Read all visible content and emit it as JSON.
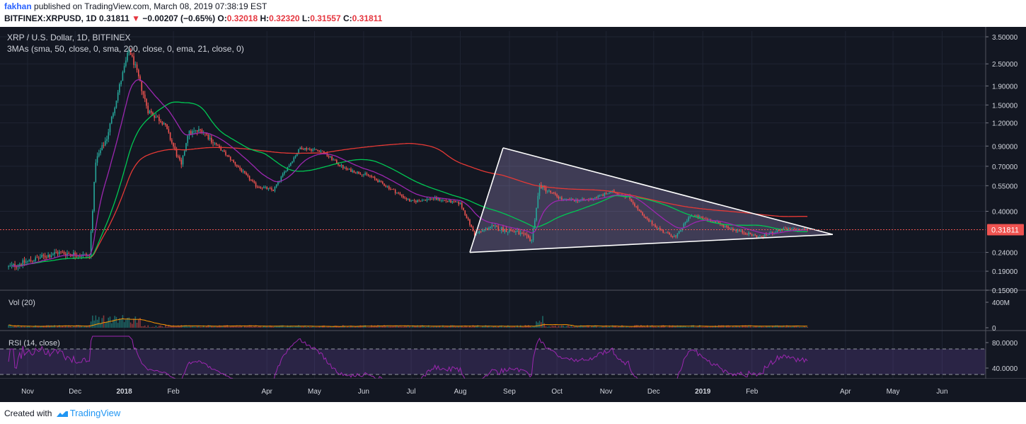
{
  "header": {
    "author": "fakhan",
    "published": "published on TradingView.com, March 08, 2019 07:38:19 EST",
    "symbol": "BITFINEX:XRPUSD, 1D",
    "last": "0.31811",
    "arrow": "▼",
    "change": "−0.00207 (−0.65%)",
    "o_label": "O:",
    "o": "0.32018",
    "h_label": "H:",
    "h": "0.32320",
    "l_label": "L:",
    "l": "0.31557",
    "c_label": "C:",
    "c": "0.31811"
  },
  "legend": {
    "title": "XRP / U.S. Dollar, 1D, BITFINEX",
    "mas": "3MAs (sma, 50, close, 0, sma, 200, close, 0, ema, 21, close, 0)",
    "vol": "Vol (20)",
    "rsi": "RSI (14, close)"
  },
  "price_badge": "0.31811",
  "footer": {
    "created": "Created with",
    "brand": "TradingView"
  },
  "colors": {
    "background": "#131722",
    "up": "#26a69a",
    "down": "#ef5350",
    "sma50": "#00c853",
    "sma200": "#e53935",
    "ema21": "#9c27b0",
    "triangle": "#ffffff",
    "rsi": "#9c27b0"
  },
  "chart_data": {
    "type": "candlestick",
    "scale": "log",
    "price_axis": {
      "ticks": [
        "3.50000",
        "2.50000",
        "1.90000",
        "1.50000",
        "1.20000",
        "0.90000",
        "0.70000",
        "0.55000",
        "0.40000",
        "0.24000",
        "0.19000",
        "0.15000"
      ]
    },
    "volume_axis": {
      "ticks": [
        "400M",
        "0"
      ]
    },
    "rsi_axis": {
      "ticks": [
        "80.0000",
        "40.0000"
      ],
      "bands": [
        70,
        30
      ]
    },
    "time_axis": [
      "Nov",
      "Dec",
      "2018",
      "Feb",
      "Apr",
      "May",
      "Jun",
      "Jul",
      "Aug",
      "Sep",
      "Oct",
      "Nov",
      "Dec",
      "2019",
      "Feb",
      "Apr",
      "May",
      "Jun"
    ],
    "path_keypoints": [
      [
        "2017-10-20",
        0.2
      ],
      [
        "2017-11-20",
        0.24
      ],
      [
        "2017-12-10",
        0.23
      ],
      [
        "2017-12-14",
        0.75
      ],
      [
        "2017-12-21",
        1.0
      ],
      [
        "2017-12-29",
        1.9
      ],
      [
        "2018-01-04",
        3.0
      ],
      [
        "2018-01-08",
        2.4
      ],
      [
        "2018-01-16",
        1.4
      ],
      [
        "2018-01-26",
        1.2
      ],
      [
        "2018-02-06",
        0.7
      ],
      [
        "2018-02-10",
        1.05
      ],
      [
        "2018-02-19",
        1.1
      ],
      [
        "2018-02-26",
        0.95
      ],
      [
        "2018-03-10",
        0.75
      ],
      [
        "2018-03-25",
        0.55
      ],
      [
        "2018-04-05",
        0.52
      ],
      [
        "2018-04-12",
        0.65
      ],
      [
        "2018-04-22",
        0.88
      ],
      [
        "2018-05-05",
        0.85
      ],
      [
        "2018-05-20",
        0.68
      ],
      [
        "2018-06-05",
        0.62
      ],
      [
        "2018-06-15",
        0.55
      ],
      [
        "2018-07-01",
        0.45
      ],
      [
        "2018-07-15",
        0.47
      ],
      [
        "2018-08-01",
        0.44
      ],
      [
        "2018-08-10",
        0.3
      ],
      [
        "2018-08-20",
        0.33
      ],
      [
        "2018-09-05",
        0.31
      ],
      [
        "2018-09-15",
        0.28
      ],
      [
        "2018-09-20",
        0.55
      ],
      [
        "2018-10-05",
        0.46
      ],
      [
        "2018-10-20",
        0.46
      ],
      [
        "2018-11-05",
        0.51
      ],
      [
        "2018-11-15",
        0.48
      ],
      [
        "2018-11-25",
        0.37
      ],
      [
        "2018-12-07",
        0.31
      ],
      [
        "2018-12-15",
        0.29
      ],
      [
        "2018-12-24",
        0.38
      ],
      [
        "2019-01-05",
        0.36
      ],
      [
        "2019-01-20",
        0.32
      ],
      [
        "2019-02-06",
        0.29
      ],
      [
        "2019-02-20",
        0.32
      ],
      [
        "2019-03-08",
        0.318
      ]
    ],
    "triangle": {
      "upper_start": [
        "2018-08-28",
        0.88
      ],
      "lower_start": [
        "2018-08-07",
        0.24
      ],
      "apex": [
        "2019-03-24",
        0.3
      ]
    }
  }
}
